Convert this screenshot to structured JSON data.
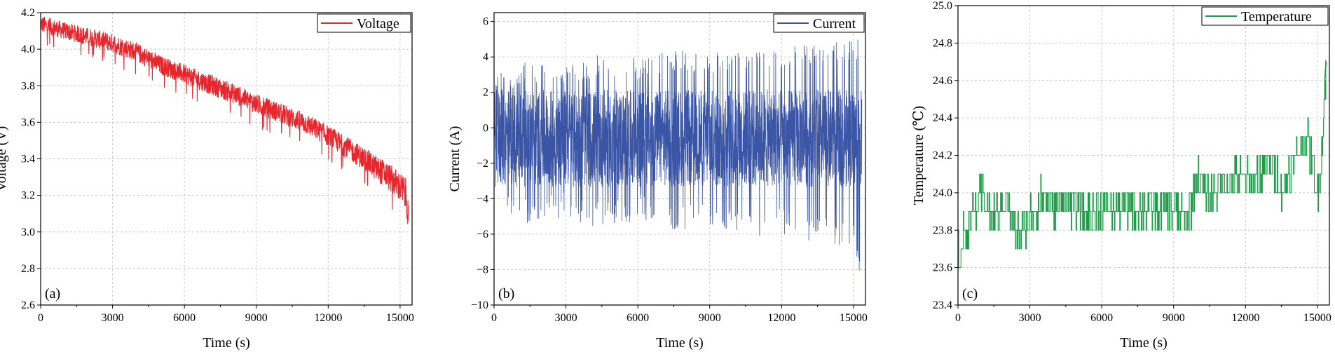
{
  "chart_data": [
    {
      "type": "line",
      "panel_label": "(a)",
      "xlabel": "Time (s)",
      "ylabel": "Voltage (V)",
      "xlim": [
        0,
        15500
      ],
      "ylim": [
        2.6,
        4.2
      ],
      "xticks": [
        0,
        3000,
        6000,
        9000,
        12000,
        15000
      ],
      "yticks": [
        2.6,
        2.8,
        3.0,
        3.2,
        3.4,
        3.6,
        3.8,
        4.0,
        4.2
      ],
      "ytick_labels": [
        "2.6",
        "2.8",
        "3.0",
        "3.2",
        "3.4",
        "3.6",
        "3.8",
        "4.0",
        "4.2"
      ],
      "grid": true,
      "legend": "top-right",
      "series": [
        {
          "name": "Voltage",
          "color": "#e8262b",
          "x": [
            0,
            1000,
            2000,
            3000,
            4000,
            5000,
            6000,
            7000,
            8000,
            9000,
            10000,
            11000,
            12000,
            13000,
            13500,
            14000,
            14500,
            15000,
            15200,
            15300,
            15350
          ],
          "upper": [
            4.2,
            4.16,
            4.13,
            4.1,
            4.05,
            3.98,
            3.93,
            3.88,
            3.83,
            3.77,
            3.72,
            3.67,
            3.6,
            3.52,
            3.48,
            3.44,
            3.4,
            3.35,
            3.33,
            3.3,
            3.15
          ],
          "lower": [
            4.02,
            3.99,
            3.95,
            3.91,
            3.86,
            3.79,
            3.74,
            3.68,
            3.63,
            3.57,
            3.52,
            3.46,
            3.39,
            3.3,
            3.25,
            3.18,
            3.13,
            3.05,
            3.0,
            2.92,
            2.9
          ]
        }
      ]
    },
    {
      "type": "line",
      "panel_label": "(b)",
      "xlabel": "Time (s)",
      "ylabel": "Current (A)",
      "xlim": [
        0,
        15500
      ],
      "ylim": [
        -10,
        6.5
      ],
      "xticks": [
        0,
        3000,
        6000,
        9000,
        12000,
        15000
      ],
      "yticks": [
        -10,
        -8,
        -6,
        -4,
        -2,
        0,
        2,
        4,
        6
      ],
      "ytick_labels": [
        "−10",
        "−8",
        "−6",
        "−4",
        "−2",
        "0",
        "2",
        "4",
        "6"
      ],
      "grid": true,
      "legend": "top-right",
      "series": [
        {
          "name": "Current",
          "color": "#3a55a5",
          "x": [
            0,
            1500,
            3000,
            4500,
            6000,
            7500,
            9000,
            10500,
            12000,
            13500,
            15000,
            15350
          ],
          "upper": [
            3.0,
            3.8,
            3.5,
            4.2,
            3.9,
            4.4,
            4.3,
            4.5,
            4.6,
            4.8,
            4.9,
            5.1
          ],
          "lower": [
            -4.5,
            -5.5,
            -5.0,
            -5.8,
            -5.2,
            -6.0,
            -5.6,
            -6.2,
            -6.0,
            -6.5,
            -7.0,
            -9.2
          ],
          "center": -0.6
        }
      ]
    },
    {
      "type": "line",
      "panel_label": "(c)",
      "xlabel": "Time (s)",
      "ylabel": "Temperature (℃)",
      "xlim": [
        0,
        15500
      ],
      "ylim": [
        23.4,
        25.0
      ],
      "xticks": [
        0,
        3000,
        6000,
        9000,
        12000,
        15000
      ],
      "yticks": [
        23.4,
        23.6,
        23.8,
        24.0,
        24.2,
        24.4,
        24.6,
        24.8,
        25.0
      ],
      "ytick_labels": [
        "23.4",
        "23.6",
        "23.8",
        "24.0",
        "24.2",
        "24.4",
        "24.6",
        "24.8",
        "25.0"
      ],
      "grid": true,
      "legend": "top-right",
      "series": [
        {
          "name": "Temperature",
          "color": "#1e9e48",
          "x": [
            0,
            500,
            1000,
            1500,
            2000,
            2500,
            3000,
            3500,
            4000,
            4500,
            5000,
            5500,
            6000,
            7000,
            8000,
            9000,
            9500,
            10000,
            10500,
            11000,
            11500,
            12000,
            12500,
            13000,
            13500,
            14000,
            14500,
            15000,
            15200,
            15350
          ],
          "values": [
            23.66,
            23.87,
            23.97,
            23.87,
            23.97,
            23.77,
            23.87,
            23.97,
            23.93,
            23.97,
            23.92,
            23.87,
            23.92,
            23.92,
            23.92,
            23.92,
            23.85,
            24.08,
            23.97,
            24.05,
            24.08,
            24.05,
            24.08,
            24.18,
            24.02,
            24.18,
            24.3,
            24.02,
            24.25,
            24.71
          ]
        }
      ]
    }
  ]
}
